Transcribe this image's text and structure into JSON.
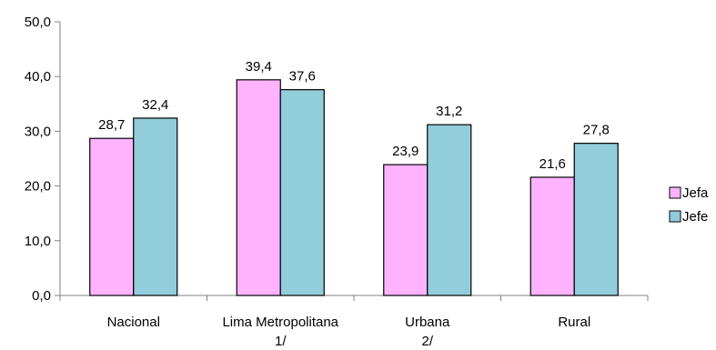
{
  "chart_data": {
    "type": "bar",
    "categories": [
      [
        "Nacional"
      ],
      [
        "Lima Metropolitana",
        "1/"
      ],
      [
        "Urbana",
        "2/"
      ],
      [
        "Rural"
      ]
    ],
    "series": [
      {
        "name": "Jefa",
        "values": [
          28.7,
          39.4,
          23.9,
          21.6
        ],
        "labels": [
          "28,7",
          "39,4",
          "23,9",
          "21,6"
        ],
        "color": "#FFB3FF"
      },
      {
        "name": "Jefe",
        "values": [
          32.4,
          37.6,
          31.2,
          27.8
        ],
        "labels": [
          "32,4",
          "37,6",
          "31,2",
          "27,8"
        ],
        "color": "#92CDDC"
      }
    ],
    "ylim": [
      0,
      50
    ],
    "yticks": [
      0,
      10,
      20,
      30,
      40,
      50
    ],
    "ytick_labels": [
      "0,0",
      "10,0",
      "20,0",
      "30,0",
      "40,0",
      "50,0"
    ],
    "grid": false,
    "legend_position": "right"
  }
}
